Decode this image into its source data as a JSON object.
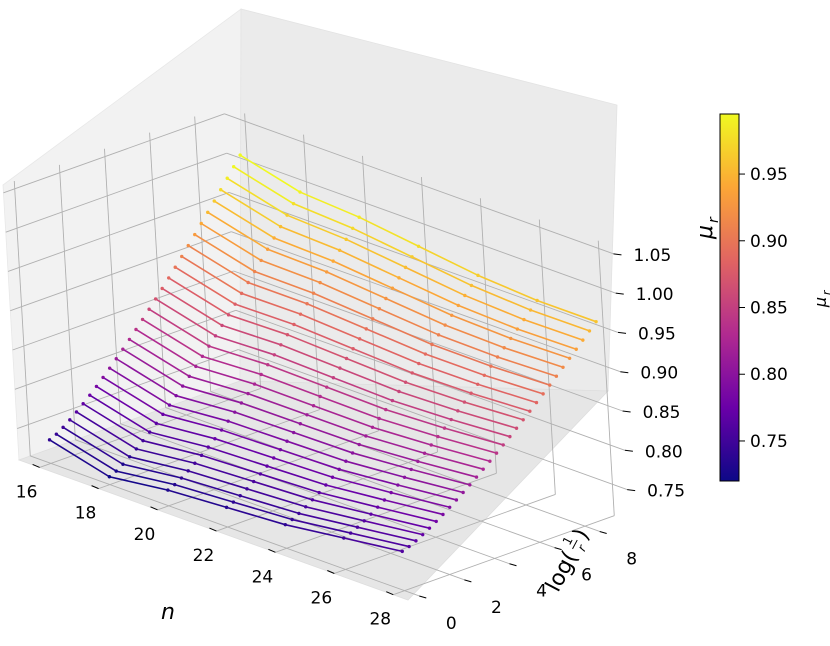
{
  "chart_data": {
    "type": "surface3d",
    "title": "",
    "xlabel": "n",
    "ylabel": "log(1/r)",
    "ylabel_parts": {
      "prefix": "log(",
      "num": "1",
      "den": "r",
      "suffix": ")"
    },
    "zlabel": "μ_r",
    "zlabel_parts": {
      "main": "μ",
      "sub": "r"
    },
    "x_ticks": [
      "16",
      "18",
      "20",
      "22",
      "24",
      "26",
      "28"
    ],
    "y_ticks": [
      "0",
      "2",
      "4",
      "6",
      "8"
    ],
    "z_ticks": [
      "0.75",
      "0.80",
      "0.85",
      "0.90",
      "0.95",
      "1.00",
      "1.05"
    ],
    "xlim": [
      15.3,
      28.5
    ],
    "ylim": [
      -0.5,
      9.3
    ],
    "zlim": [
      0.71,
      1.06
    ],
    "n_values": [
      16,
      18,
      20,
      22,
      24,
      26,
      28
    ],
    "log_inv_r_samples": 30,
    "log_inv_r_range": [
      0,
      9
    ],
    "mu_min_by_n": [
      0.74,
      0.72,
      0.73,
      0.735,
      0.74,
      0.75,
      0.76
    ],
    "mu_gain_by_n": [
      0.27,
      0.27,
      0.255,
      0.24,
      0.225,
      0.21,
      0.2
    ],
    "surface_exponent": 1.25,
    "colorbar": {
      "label": "μ_r",
      "label_parts": {
        "main": "μ",
        "sub": "r"
      },
      "range": [
        0.72,
        0.995
      ],
      "ticks": [
        "0.75",
        "0.80",
        "0.85",
        "0.90",
        "0.95"
      ],
      "colormap": "plasma"
    }
  }
}
